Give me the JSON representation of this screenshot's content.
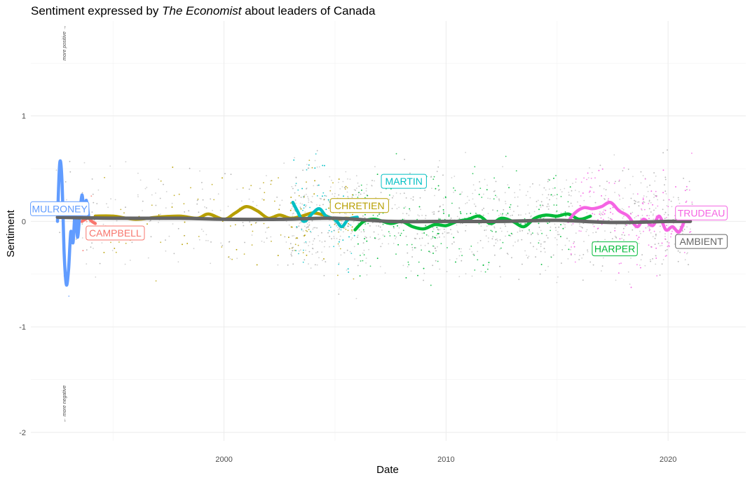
{
  "chart_data": {
    "type": "scatter",
    "title_prefix": "Sentiment expressed by ",
    "title_italic": "The Economist",
    "title_suffix": " about leaders of Canada",
    "xlabel": "Date",
    "ylabel": "Sentiment",
    "xlim": [
      1991.3,
      2023.5
    ],
    "ylim": [
      -2.08,
      1.9
    ],
    "x_ticks": [
      2000,
      2010,
      2020
    ],
    "x_tick_labels": [
      "2000",
      "2010",
      "2020"
    ],
    "x_minor_ticks": [
      1995,
      2005,
      2015
    ],
    "y_ticks": [
      -2,
      -1,
      0,
      1
    ],
    "y_tick_labels": [
      "-2",
      "-1",
      "0",
      "1"
    ],
    "y_minor_ticks": [
      -1.5,
      -0.5,
      0.5,
      1.5
    ],
    "grid": true,
    "legend": "none",
    "annotation_positive": "more positive →",
    "annotation_negative": "← more negative",
    "series": [
      {
        "name": "MULRONEY",
        "color": "#619cff",
        "x": [
          1992.5,
          1992.6,
          1992.7,
          1992.8,
          1992.9,
          1993.0,
          1993.1,
          1993.2,
          1993.3,
          1993.4,
          1993.5,
          1993.6,
          1993.7,
          1993.8,
          1993.9
        ],
        "y": [
          0.0,
          0.55,
          0.4,
          -0.3,
          -0.6,
          -0.45,
          -0.1,
          -0.2,
          0.1,
          -0.15,
          0.05,
          0.25,
          0.1,
          0.2,
          0.05
        ]
      },
      {
        "name": "CAMPBELL",
        "color": "#f8766d",
        "x": [
          1993.6,
          1993.75,
          1993.9,
          1994.05,
          1994.2
        ],
        "y": [
          0.0,
          0.02,
          0.03,
          0.0,
          -0.02
        ]
      },
      {
        "name": "CHRETIEN",
        "color": "#b79f00",
        "x": [
          1994.2,
          1995.0,
          1996.0,
          1997.0,
          1998.0,
          1998.8,
          1999.3,
          2000.0,
          2000.5,
          2001.0,
          2001.5,
          2002.0,
          2002.5,
          2003.0,
          2003.5,
          2004.0,
          2004.5,
          2005.0,
          2005.5,
          2006.0
        ],
        "y": [
          0.05,
          0.05,
          0.02,
          0.04,
          0.05,
          0.03,
          0.07,
          0.02,
          0.08,
          0.14,
          0.1,
          0.03,
          0.06,
          0.03,
          0.05,
          0.08,
          0.06,
          0.02,
          0.03,
          0.02
        ]
      },
      {
        "name": "MARTIN",
        "color": "#00bfc4",
        "x": [
          2003.1,
          2003.3,
          2003.6,
          2004.0,
          2004.3,
          2004.6,
          2005.0,
          2005.3,
          2005.6,
          2006.0
        ],
        "y": [
          0.18,
          0.1,
          0.0,
          0.08,
          0.12,
          0.05,
          0.02,
          -0.05,
          0.02,
          0.04
        ]
      },
      {
        "name": "HARPER",
        "color": "#00ba38",
        "x": [
          2005.9,
          2006.3,
          2006.8,
          2007.5,
          2008.0,
          2008.5,
          2009.0,
          2009.5,
          2010.0,
          2010.5,
          2011.0,
          2011.5,
          2012.0,
          2012.5,
          2013.0,
          2013.5,
          2014.0,
          2014.5,
          2015.0,
          2015.5,
          2016.0,
          2016.5
        ],
        "y": [
          -0.08,
          0.0,
          0.02,
          -0.02,
          0.0,
          -0.05,
          -0.07,
          -0.03,
          -0.04,
          0.0,
          0.02,
          0.05,
          -0.02,
          0.03,
          0.0,
          -0.05,
          0.03,
          0.06,
          0.05,
          0.07,
          0.02,
          0.05
        ]
      },
      {
        "name": "TRUDEAU",
        "color": "#f564e3",
        "x": [
          2015.5,
          2015.8,
          2016.2,
          2016.6,
          2017.0,
          2017.4,
          2017.8,
          2018.2,
          2018.6,
          2018.9,
          2019.3,
          2019.6,
          2019.9,
          2020.2,
          2020.5,
          2020.8,
          2021.0
        ],
        "y": [
          0.0,
          0.08,
          0.13,
          0.12,
          0.14,
          0.18,
          0.1,
          0.05,
          -0.05,
          0.02,
          -0.04,
          0.05,
          -0.08,
          -0.05,
          -0.1,
          0.03,
          0.02
        ]
      },
      {
        "name": "AMBIENT",
        "color": "#666666",
        "x": [
          1992.5,
          1995.0,
          1998.0,
          2000.0,
          2002.5,
          2005.0,
          2007.5,
          2010.0,
          2012.5,
          2015.0,
          2017.5,
          2020.0,
          2021.0
        ],
        "y": [
          0.04,
          0.03,
          0.03,
          0.02,
          0.02,
          0.03,
          0.0,
          0.0,
          0.0,
          0.01,
          -0.01,
          0.0,
          0.0
        ]
      }
    ],
    "labels": [
      {
        "text": "MULRONEY",
        "series": "MULRONEY",
        "x": 1992.6,
        "y": 0.12
      },
      {
        "text": "CAMPBELL",
        "series": "CAMPBELL",
        "x": 1995.1,
        "y": -0.11
      },
      {
        "text": "CHRETIEN",
        "series": "CHRETIEN",
        "x": 2006.1,
        "y": 0.15
      },
      {
        "text": "MARTIN",
        "series": "MARTIN",
        "x": 2008.1,
        "y": 0.38
      },
      {
        "text": "HARPER",
        "series": "HARPER",
        "x": 2017.6,
        "y": -0.26
      },
      {
        "text": "TRUDEAU",
        "series": "TRUDEAU",
        "x": 2021.5,
        "y": 0.08
      },
      {
        "text": "AMBIENT",
        "series": "AMBIENT",
        "x": 2021.5,
        "y": -0.19
      }
    ]
  }
}
